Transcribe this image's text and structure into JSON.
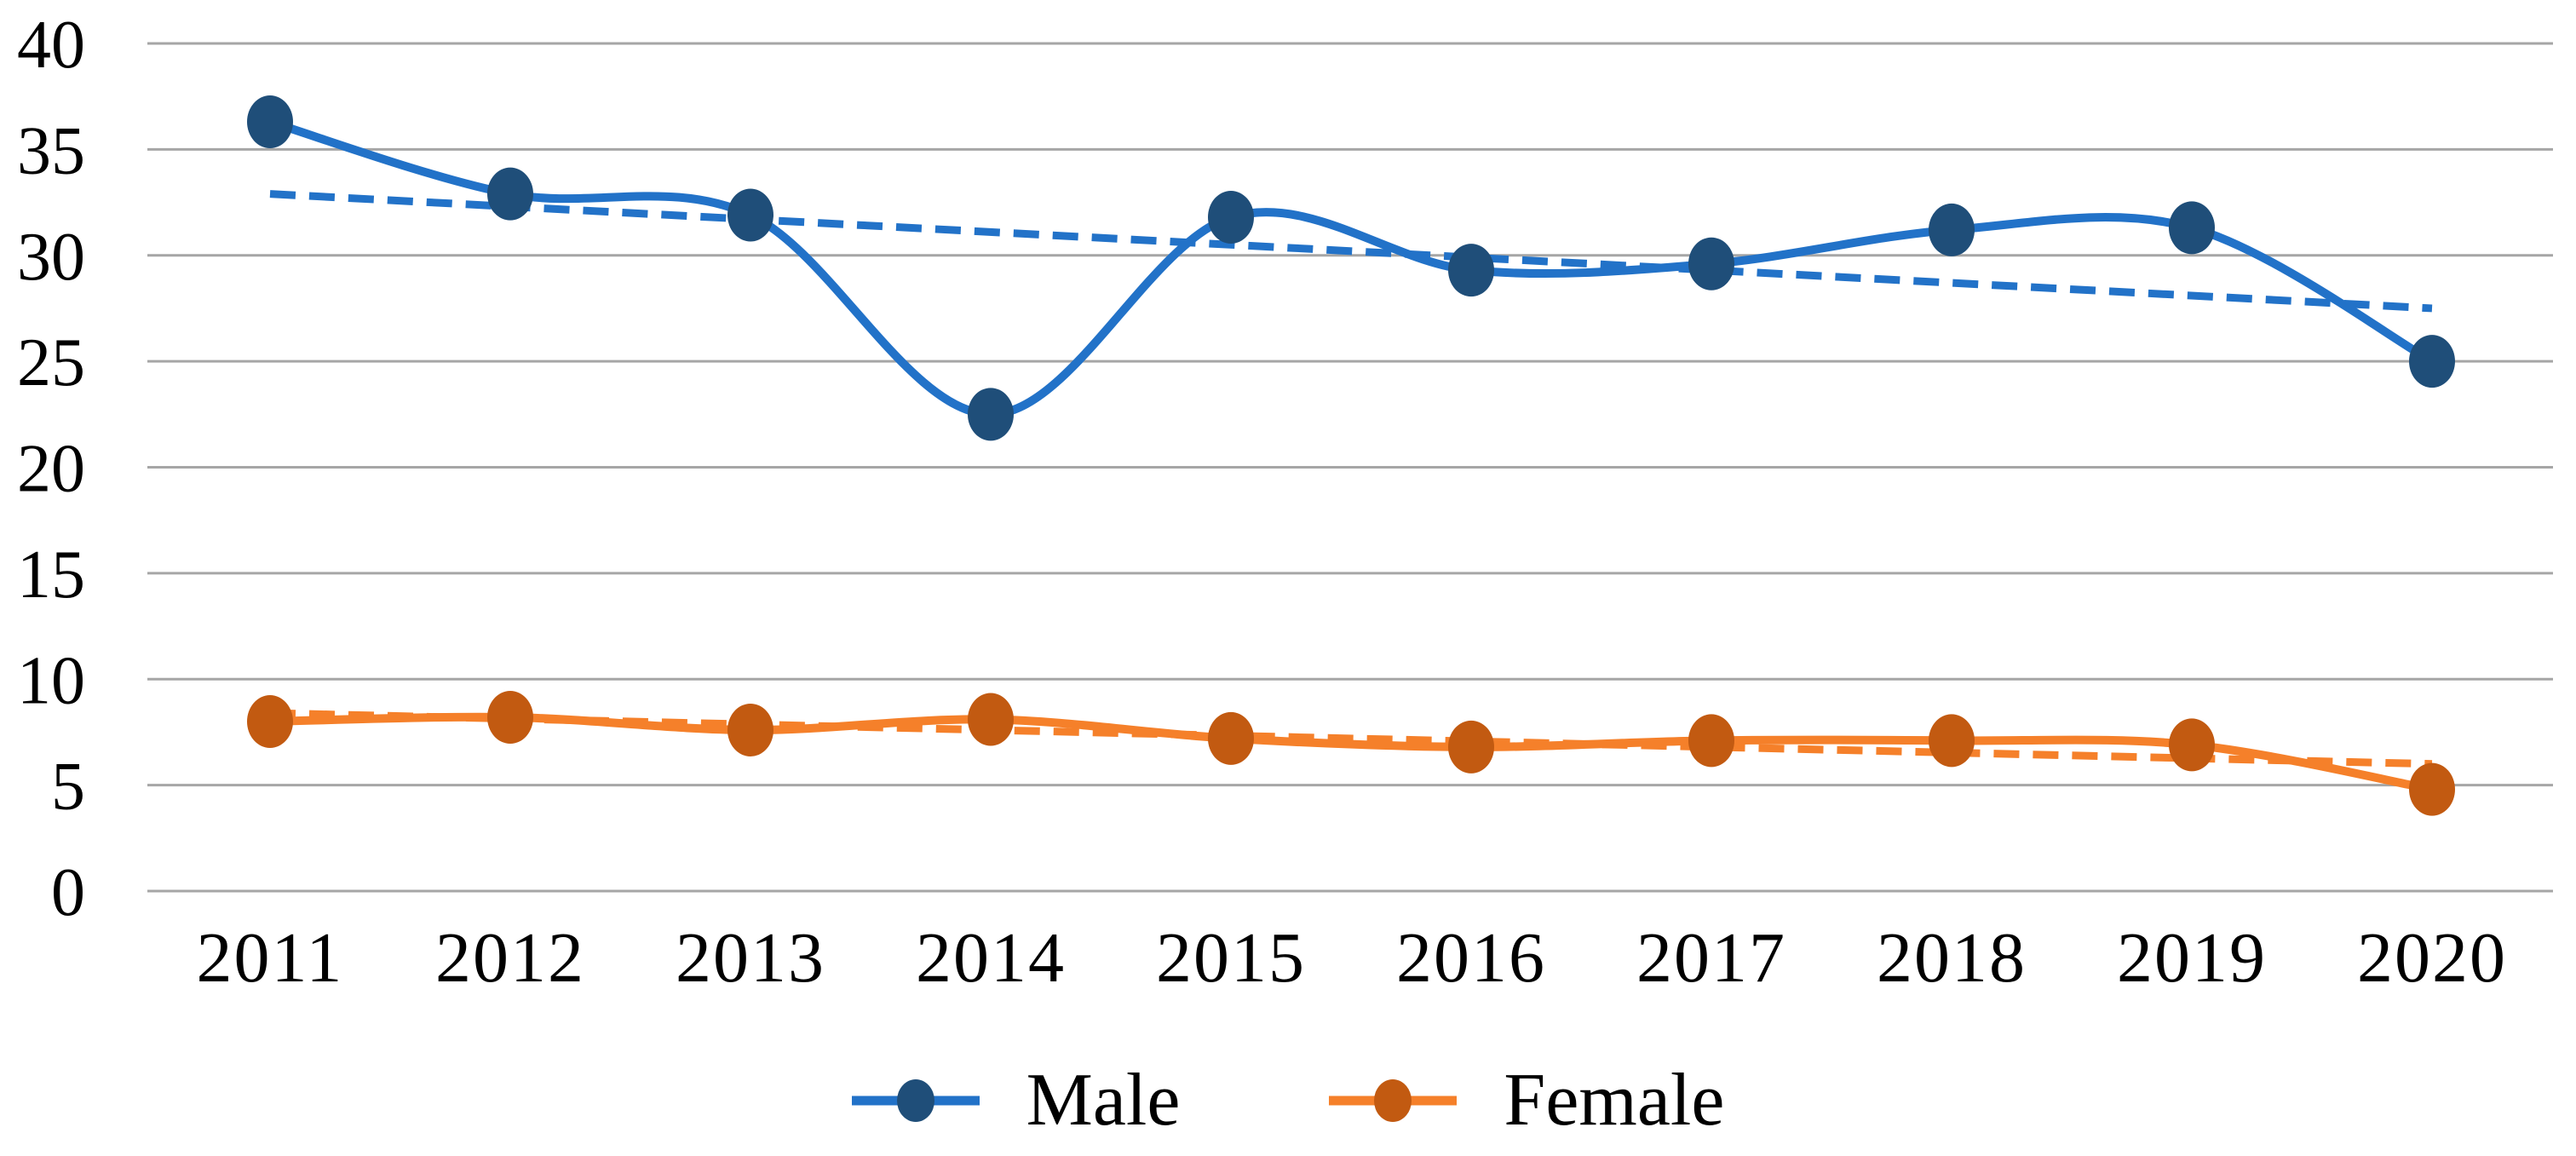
{
  "chart_data": {
    "type": "line",
    "title": "",
    "xlabel": "",
    "ylabel": "",
    "categories": [
      "2011",
      "2012",
      "2013",
      "2014",
      "2015",
      "2016",
      "2017",
      "2018",
      "2019",
      "2020"
    ],
    "series": [
      {
        "name": "Male",
        "values": [
          36.3,
          32.9,
          31.9,
          22.5,
          31.8,
          29.3,
          29.6,
          31.2,
          31.3,
          25.0
        ],
        "line_color": "#2272C8",
        "marker_color": "#1F4E79",
        "trendline": {
          "style": "dashed",
          "start": 32.9,
          "end": 27.5
        }
      },
      {
        "name": "Female",
        "values": [
          8.0,
          8.2,
          7.6,
          8.1,
          7.2,
          6.8,
          7.1,
          7.1,
          6.9,
          4.8
        ],
        "line_color": "#F5802A",
        "marker_color": "#C25A11",
        "trendline": {
          "style": "dashed",
          "start": 8.4,
          "end": 6.0
        }
      }
    ],
    "ylim": [
      0,
      40
    ],
    "yticks": [
      0,
      5,
      10,
      15,
      20,
      25,
      30,
      35,
      40
    ],
    "grid": "horizontal",
    "gridline_color": "#A6A6A6",
    "tick_text_color": "#000000",
    "background_color": "#FFFFFF",
    "line_style": "smoothed",
    "legend": {
      "position": "bottom",
      "entries": [
        "Male",
        "Female"
      ]
    }
  }
}
